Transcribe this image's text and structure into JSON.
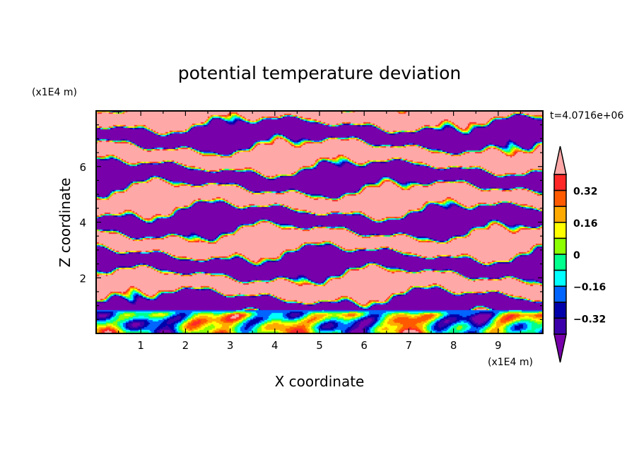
{
  "chart_data": {
    "type": "heatmap",
    "subtype": "filled contour",
    "title": "potential temperature deviation",
    "xlabel": "X coordinate",
    "ylabel": "Z coordinate",
    "x_unit": "(x1E4 m)",
    "y_unit": "(x1E4 m)",
    "time_label": "t=4.0716e+06",
    "xlim": [
      0,
      10
    ],
    "ylim": [
      0,
      8
    ],
    "x_ticks": [
      1,
      2,
      3,
      4,
      5,
      6,
      7,
      8,
      9
    ],
    "x_tick_labels": [
      "1",
      "2",
      "3",
      "4",
      "5",
      "6",
      "7",
      "8",
      "9"
    ],
    "y_ticks": [
      2,
      4,
      6
    ],
    "y_tick_labels": [
      "2",
      "4",
      "6"
    ],
    "levels": [
      -0.4,
      -0.32,
      -0.24,
      -0.16,
      -0.08,
      0,
      0.08,
      0.16,
      0.24,
      0.32,
      0.4
    ],
    "colorbar_labels": [
      {
        "value": 0.32,
        "text": "0.32"
      },
      {
        "value": 0.16,
        "text": "0.16"
      },
      {
        "value": 0,
        "text": "0"
      },
      {
        "value": -0.16,
        "text": "−0.16"
      },
      {
        "value": -0.32,
        "text": "−0.32"
      }
    ],
    "colors": [
      "#7800aa",
      "#3c00aa",
      "#0000aa",
      "#0064ff",
      "#00ffff",
      "#00ff8c",
      "#8cff00",
      "#ffff00",
      "#ffaa00",
      "#ff5a00",
      "#ff2828",
      "#ffa8a8"
    ],
    "colorbar_extend": "both",
    "colorbar_position": "right"
  }
}
